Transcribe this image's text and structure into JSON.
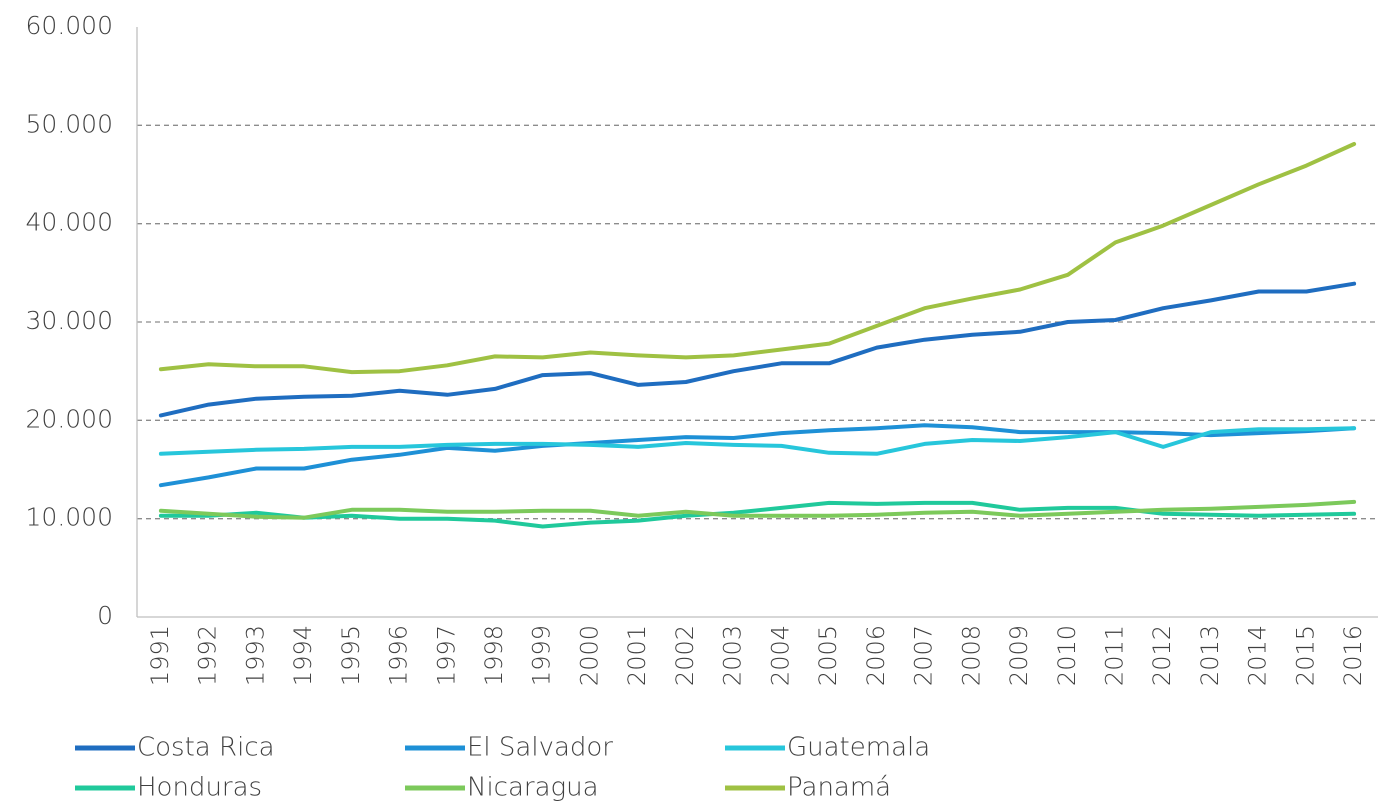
{
  "chart_data": {
    "type": "line",
    "categories": [
      "1991",
      "1992",
      "1993",
      "1994",
      "1995",
      "1996",
      "1997",
      "1998",
      "1999",
      "2000",
      "2001",
      "2002",
      "2003",
      "2004",
      "2005",
      "2006",
      "2007",
      "2008",
      "2009",
      "2010",
      "2011",
      "2012",
      "2013",
      "2014",
      "2015",
      "2016"
    ],
    "series": [
      {
        "name": "Costa Rica",
        "color": "#1f6dc0",
        "values": [
          20500,
          21600,
          22200,
          22400,
          22500,
          23000,
          22600,
          23200,
          24600,
          24800,
          23600,
          23900,
          25000,
          25800,
          25800,
          27400,
          28200,
          28700,
          29000,
          30000,
          30200,
          31400,
          32200,
          33100,
          33100,
          33900
        ]
      },
      {
        "name": "El Salvador",
        "color": "#1e90d6",
        "values": [
          13400,
          14200,
          15100,
          15100,
          16000,
          16500,
          17200,
          16900,
          17400,
          17700,
          18000,
          18300,
          18200,
          18700,
          19000,
          19200,
          19500,
          19300,
          18800,
          18800,
          18800,
          18700,
          18500,
          18700,
          18900,
          19200
        ]
      },
      {
        "name": "Guatemala",
        "color": "#27c6db",
        "values": [
          16600,
          16800,
          17000,
          17100,
          17300,
          17300,
          17500,
          17600,
          17600,
          17500,
          17300,
          17700,
          17500,
          17400,
          16700,
          16600,
          17600,
          18000,
          17900,
          18300,
          18800,
          17300,
          18800,
          19100,
          19100,
          19200
        ]
      },
      {
        "name": "Honduras",
        "color": "#20c99b",
        "values": [
          10300,
          10300,
          10600,
          10100,
          10300,
          10000,
          10000,
          9800,
          9200,
          9600,
          9800,
          10300,
          10600,
          11100,
          11600,
          11500,
          11600,
          11600,
          10900,
          11100,
          11100,
          10500,
          10400,
          10300,
          10400,
          10500
        ]
      },
      {
        "name": "Nicaragua",
        "color": "#7cc95b",
        "values": [
          10800,
          10500,
          10200,
          10100,
          10900,
          10900,
          10700,
          10700,
          10800,
          10800,
          10300,
          10700,
          10300,
          10300,
          10300,
          10400,
          10600,
          10700,
          10300,
          10500,
          10700,
          10900,
          11000,
          11200,
          11400,
          11700
        ]
      },
      {
        "name": "Panamá",
        "color": "#9fc143",
        "values": [
          25200,
          25700,
          25500,
          25500,
          24900,
          25000,
          25600,
          26500,
          26400,
          26900,
          26600,
          26400,
          26600,
          27200,
          27800,
          29600,
          31400,
          32400,
          33300,
          34800,
          38100,
          39800,
          41900,
          44000,
          45900,
          48100
        ]
      }
    ],
    "ylim": [
      0,
      60000
    ],
    "yticks": [
      0,
      {
        "value": 10000,
        "label": "10.000"
      },
      {
        "value": 20000,
        "label": "20.000"
      },
      {
        "value": 30000,
        "label": "30.000"
      },
      {
        "value": 40000,
        "label": "40.000"
      },
      {
        "value": 50000,
        "label": "50.000"
      },
      {
        "value": 60000,
        "label": "60.000"
      }
    ],
    "grid": true,
    "legend": "bottom"
  }
}
